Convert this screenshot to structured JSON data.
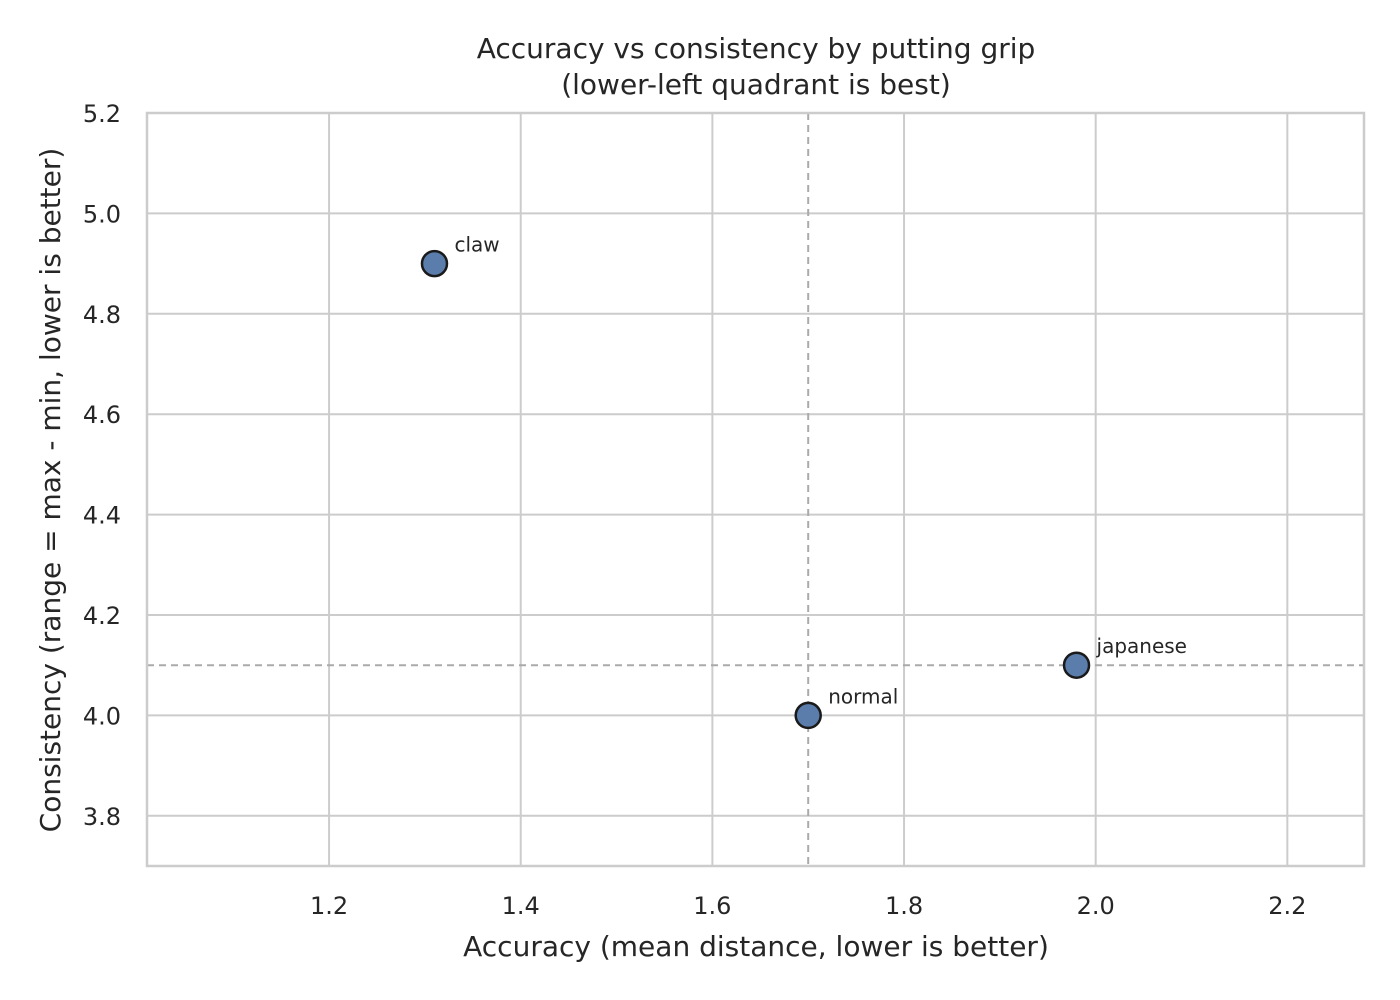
{
  "chart_data": {
    "type": "scatter",
    "title": "Accuracy vs consistency by putting grip",
    "subtitle": "(lower-left quadrant is best)",
    "xlabel": "Accuracy (mean distance, lower is better)",
    "ylabel": "Consistency (range = max - min, lower is better)",
    "xlim": [
      1.01,
      2.28
    ],
    "ylim": [
      3.7,
      5.2
    ],
    "xticks": [
      "1.2",
      "1.4",
      "1.6",
      "1.8",
      "2.0",
      "2.2"
    ],
    "yticks": [
      "3.8",
      "4.0",
      "4.2",
      "4.4",
      "4.6",
      "4.8",
      "5.0",
      "5.2"
    ],
    "grid": true,
    "points": [
      {
        "label": "claw",
        "x": 1.31,
        "y": 4.9
      },
      {
        "label": "normal",
        "x": 1.7,
        "y": 4.0
      },
      {
        "label": "japanese",
        "x": 1.98,
        "y": 4.1
      }
    ],
    "reference_lines": {
      "vertical_x": 1.7,
      "horizontal_y": 4.1
    },
    "colors": {
      "marker": "#5a7dab",
      "marker_edge": "#1a1a1a",
      "grid": "#cccccc",
      "reference": "#aaaaaa",
      "text": "#262626"
    }
  }
}
